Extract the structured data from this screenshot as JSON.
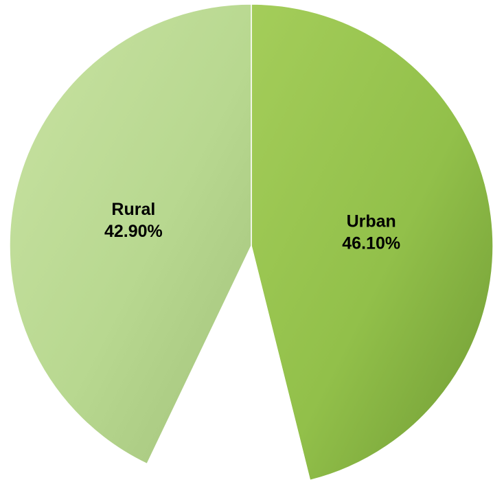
{
  "chart_data": {
    "type": "pie",
    "title": "",
    "start_angle_deg": 0,
    "direction": "clockwise",
    "slices": [
      {
        "name": "Urban",
        "value": 46.1,
        "label": "Urban",
        "value_label": "46.10%",
        "color": "#92c04a",
        "color_highlight": "#a4cd5a",
        "color_shadow": "#6f9a33"
      },
      {
        "name": "Unlabeled",
        "value": 11.0,
        "label": "",
        "value_label": "",
        "color": "#ffffff",
        "color_highlight": "#ffffff",
        "color_shadow": "#ffffff"
      },
      {
        "name": "Rural",
        "value": 42.9,
        "label": "Rural",
        "value_label": "42.90%",
        "color": "#b8d890",
        "color_highlight": "#c8e2a2",
        "color_shadow": "#a2c27a"
      }
    ]
  }
}
